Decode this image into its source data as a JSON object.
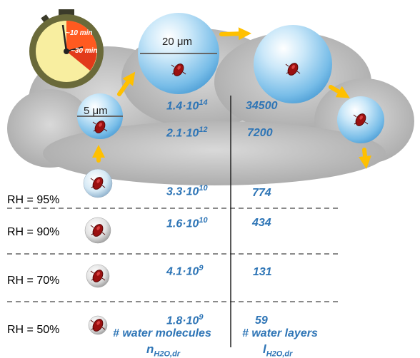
{
  "timer": {
    "label_10": "~10 min",
    "label_30": "~30 min"
  },
  "size_labels": {
    "large": "20 μm",
    "small": "5 μm"
  },
  "rh_levels": [
    {
      "rh": "RH = 95%",
      "n_base": "3.3·10",
      "n_exp": "10",
      "layers": "774"
    },
    {
      "rh": "RH = 90%",
      "n_base": "1.6·10",
      "n_exp": "10",
      "layers": "434"
    },
    {
      "rh": "RH = 70%",
      "n_base": "4.1·10",
      "n_exp": "9",
      "layers": "131"
    },
    {
      "rh": "RH = 50%",
      "n_base": "1.8·10",
      "n_exp": "9",
      "layers": "59"
    }
  ],
  "droplets": [
    {
      "n_base": "1.4·10",
      "n_exp": "14",
      "layers": "34500"
    },
    {
      "n_base": "2.1·10",
      "n_exp": "12",
      "layers": "7200"
    }
  ],
  "footer": {
    "molecules_label": "# water molecules",
    "layers_label": "# water layers",
    "n_symbol": "n",
    "n_sub": "H2O,dr",
    "l_symbol": "l",
    "l_sub": "H2O,dr"
  },
  "colors": {
    "value_text": "#2e75b6",
    "arrow": "#ffc000",
    "bacterium": "#a01010",
    "droplet": "#7fc3ec"
  }
}
